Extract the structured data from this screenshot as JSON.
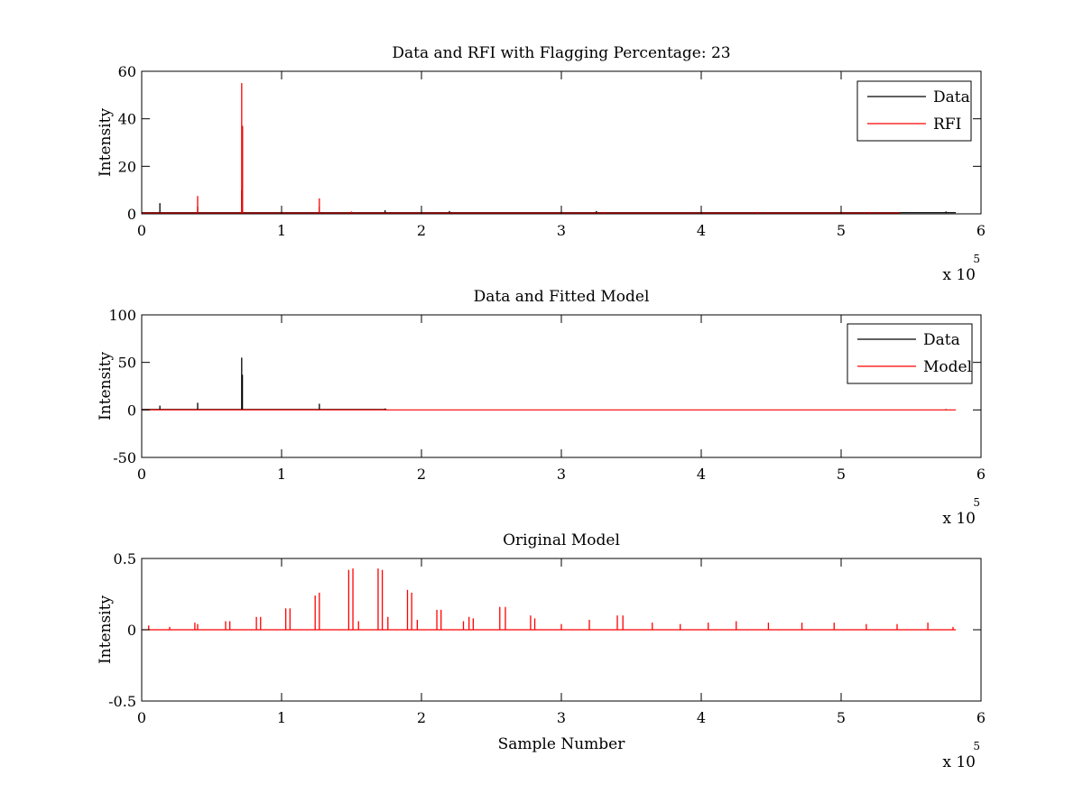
{
  "chart_data": [
    {
      "type": "line",
      "title": "Data and RFI with Flagging Percentage: 23",
      "xlabel": "",
      "ylabel": "Intensity",
      "xlim": [
        0,
        6
      ],
      "ylim": [
        0,
        60
      ],
      "xticks": [
        0,
        1,
        2,
        3,
        4,
        5,
        6
      ],
      "yticks": [
        0,
        20,
        40,
        60
      ],
      "x_exponent": {
        "base": "x 10",
        "power": "5"
      },
      "grid": false,
      "legend": "top-right",
      "colors": {
        "Data": "#000000",
        "RFI": "#ff0000"
      },
      "series": [
        {
          "name": "Data",
          "baseline": 0.5,
          "spikes": [
            [
              0.13,
              4.5
            ],
            [
              0.4,
              3.0
            ],
            [
              0.715,
              10.0
            ],
            [
              0.72,
              37.0
            ],
            [
              1.27,
              3.0
            ],
            [
              1.74,
              1.5
            ],
            [
              2.2,
              1.2
            ],
            [
              3.25,
              1.2
            ],
            [
              5.75,
              1.0
            ]
          ],
          "x_end": 5.82
        },
        {
          "name": "RFI",
          "baseline": 0.3,
          "spikes": [
            [
              0.4,
              7.5
            ],
            [
              0.715,
              55.0
            ],
            [
              0.72,
              37.0
            ],
            [
              1.27,
              6.5
            ],
            [
              1.5,
              1.0
            ],
            [
              3.3,
              0.8
            ],
            [
              4.4,
              0.8
            ],
            [
              5.2,
              0.8
            ]
          ],
          "x_end": 5.42
        }
      ]
    },
    {
      "type": "line",
      "title": "Data and Fitted Model",
      "xlabel": "",
      "ylabel": "Intensity",
      "xlim": [
        0,
        6
      ],
      "ylim": [
        -50,
        100
      ],
      "xticks": [
        0,
        1,
        2,
        3,
        4,
        5,
        6
      ],
      "yticks": [
        -50,
        0,
        50,
        100
      ],
      "x_exponent": {
        "base": "x 10",
        "power": "5"
      },
      "grid": false,
      "legend": "top-right",
      "colors": {
        "Data": "#000000",
        "Model": "#ff0000"
      },
      "series": [
        {
          "name": "Data",
          "baseline": 0.5,
          "spikes": [
            [
              0.13,
              4.5
            ],
            [
              0.4,
              7.5
            ],
            [
              0.715,
              55.0
            ],
            [
              0.72,
              37.0
            ],
            [
              1.27,
              6.5
            ],
            [
              1.74,
              1.5
            ],
            [
              5.75,
              1.0
            ]
          ],
          "x_end": 1.75
        },
        {
          "name": "Model",
          "baseline": 0.0,
          "spikes": [],
          "x_end": 5.82
        }
      ]
    },
    {
      "type": "line",
      "title": "Original Model",
      "xlabel": "Sample Number",
      "ylabel": "Intensity",
      "xlim": [
        0,
        6
      ],
      "ylim": [
        -0.5,
        0.5
      ],
      "xticks": [
        0,
        1,
        2,
        3,
        4,
        5,
        6
      ],
      "yticks": [
        -0.5,
        0,
        0.5
      ],
      "x_exponent": {
        "base": "x 10",
        "power": "5"
      },
      "grid": false,
      "legend": "none",
      "colors": {
        "Model": "#ff0000"
      },
      "series": [
        {
          "name": "",
          "baseline": 0.0,
          "spikes": [
            [
              0.05,
              0.03
            ],
            [
              0.2,
              0.02
            ],
            [
              0.38,
              0.05
            ],
            [
              0.4,
              0.04
            ],
            [
              0.6,
              0.06
            ],
            [
              0.63,
              0.06
            ],
            [
              0.82,
              0.09
            ],
            [
              0.85,
              0.09
            ],
            [
              1.03,
              0.15
            ],
            [
              1.06,
              0.15
            ],
            [
              1.24,
              0.24
            ],
            [
              1.27,
              0.26
            ],
            [
              1.48,
              0.42
            ],
            [
              1.51,
              0.43
            ],
            [
              1.55,
              0.06
            ],
            [
              1.69,
              0.43
            ],
            [
              1.72,
              0.42
            ],
            [
              1.76,
              0.09
            ],
            [
              1.9,
              0.28
            ],
            [
              1.93,
              0.26
            ],
            [
              1.97,
              0.07
            ],
            [
              2.11,
              0.14
            ],
            [
              2.14,
              0.14
            ],
            [
              2.3,
              0.06
            ],
            [
              2.34,
              0.09
            ],
            [
              2.37,
              0.08
            ],
            [
              2.56,
              0.16
            ],
            [
              2.6,
              0.16
            ],
            [
              2.78,
              0.1
            ],
            [
              2.81,
              0.08
            ],
            [
              3.0,
              0.04
            ],
            [
              3.2,
              0.07
            ],
            [
              3.4,
              0.1
            ],
            [
              3.44,
              0.1
            ],
            [
              3.65,
              0.05
            ],
            [
              3.85,
              0.04
            ],
            [
              4.05,
              0.05
            ],
            [
              4.25,
              0.06
            ],
            [
              4.48,
              0.05
            ],
            [
              4.72,
              0.05
            ],
            [
              4.95,
              0.05
            ],
            [
              5.18,
              0.04
            ],
            [
              5.4,
              0.04
            ],
            [
              5.62,
              0.05
            ],
            [
              5.8,
              0.02
            ]
          ],
          "x_end": 5.82
        }
      ]
    }
  ]
}
